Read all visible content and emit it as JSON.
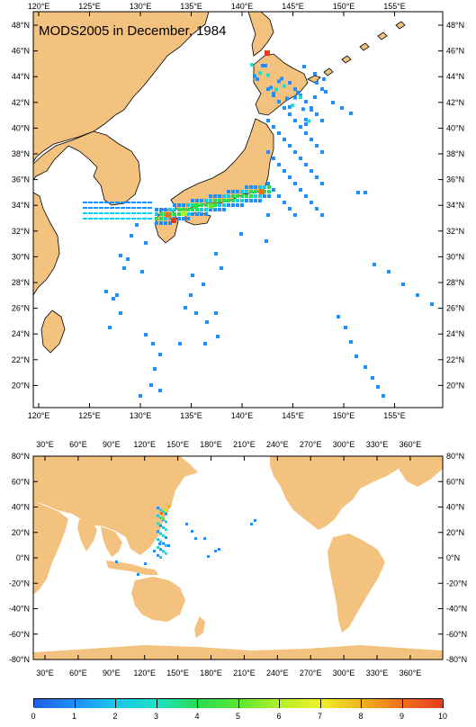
{
  "top_map": {
    "title": "MODS2005 in December, 1984",
    "lon_ticks": [
      "120°E",
      "125°E",
      "130°E",
      "135°E",
      "140°E",
      "145°E",
      "150°E",
      "155°E"
    ],
    "lat_ticks": [
      "48°N",
      "46°N",
      "44°N",
      "42°N",
      "40°N",
      "38°N",
      "36°N",
      "34°N",
      "32°N",
      "30°N",
      "28°N",
      "26°N",
      "24°N",
      "22°N",
      "20°N"
    ]
  },
  "bottom_map": {
    "lon_ticks": [
      "30°E",
      "60°E",
      "90°E",
      "120°E",
      "150°E",
      "180°E",
      "210°E",
      "240°E",
      "270°E",
      "300°E",
      "330°E",
      "360°E"
    ],
    "lat_ticks": [
      "80°N",
      "60°N",
      "40°N",
      "20°N",
      "0°N",
      "-20°N",
      "-40°N",
      "-60°N",
      "-80°N"
    ]
  },
  "colorbar": {
    "labels": [
      "0",
      "1",
      "2",
      "3",
      "4",
      "5",
      "6",
      "7",
      "8",
      "9",
      "10"
    ],
    "colors": [
      "#1f5fe0",
      "#1f8fff",
      "#19c8e6",
      "#1ee0c8",
      "#28dc50",
      "#5ae632",
      "#b4f028",
      "#f0f028",
      "#f0b41e",
      "#f06e1e",
      "#e63c1e"
    ]
  },
  "land_color": "#f2c27e",
  "ocean_color": "#ffffff"
}
